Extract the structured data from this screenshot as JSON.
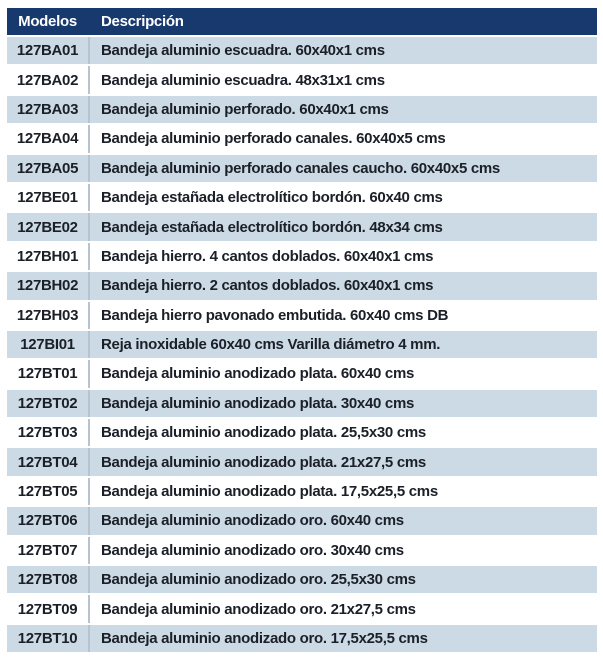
{
  "table": {
    "columns": [
      "Modelos",
      "Descripción"
    ],
    "rows": [
      {
        "model": "127BA01",
        "description": "Bandeja aluminio escuadra. 60x40x1 cms"
      },
      {
        "model": "127BA02",
        "description": "Bandeja aluminio escuadra. 48x31x1 cms"
      },
      {
        "model": "127BA03",
        "description": "Bandeja aluminio perforado. 60x40x1 cms"
      },
      {
        "model": "127BA04",
        "description": "Bandeja aluminio perforado canales. 60x40x5 cms"
      },
      {
        "model": "127BA05",
        "description": "Bandeja aluminio perforado canales caucho. 60x40x5 cms"
      },
      {
        "model": "127BE01",
        "description": "Bandeja estañada electrolítico bordón. 60x40 cms"
      },
      {
        "model": "127BE02",
        "description": "Bandeja estañada electrolítico bordón. 48x34 cms"
      },
      {
        "model": "127BH01",
        "description": "Bandeja hierro. 4 cantos doblados. 60x40x1 cms"
      },
      {
        "model": "127BH02",
        "description": "Bandeja hierro. 2 cantos doblados. 60x40x1 cms"
      },
      {
        "model": "127BH03",
        "description": "Bandeja hierro pavonado embutida. 60x40 cms DB"
      },
      {
        "model": "127BI01",
        "description": "Reja inoxidable 60x40 cms Varilla diámetro 4 mm."
      },
      {
        "model": "127BT01",
        "description": "Bandeja aluminio anodizado plata. 60x40 cms"
      },
      {
        "model": "127BT02",
        "description": "Bandeja aluminio anodizado plata. 30x40 cms"
      },
      {
        "model": "127BT03",
        "description": "Bandeja aluminio anodizado plata. 25,5x30 cms"
      },
      {
        "model": "127BT04",
        "description": "Bandeja aluminio anodizado plata. 21x27,5 cms"
      },
      {
        "model": "127BT05",
        "description": "Bandeja aluminio anodizado plata. 17,5x25,5 cms"
      },
      {
        "model": "127BT06",
        "description": "Bandeja aluminio anodizado oro. 60x40 cms"
      },
      {
        "model": "127BT07",
        "description": "Bandeja aluminio anodizado oro. 30x40 cms"
      },
      {
        "model": "127BT08",
        "description": "Bandeja aluminio anodizado oro. 25,5x30 cms"
      },
      {
        "model": "127BT09",
        "description": "Bandeja aluminio anodizado oro. 21x27,5 cms"
      },
      {
        "model": "127BT10",
        "description": "Bandeja aluminio anodizado oro. 17,5x25,5 cms"
      }
    ]
  },
  "colors": {
    "header_background": "#17396d",
    "header_text": "#ffffff",
    "stripe_row_background": "#ccdae5",
    "plain_row_background": "#ffffff",
    "column_divider": "#b7c3ce",
    "row_text": "#1b1f27"
  }
}
